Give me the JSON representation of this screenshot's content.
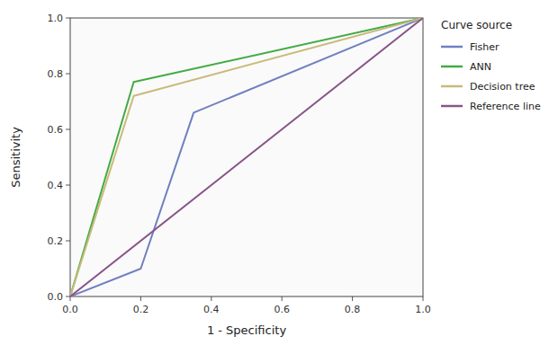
{
  "chart_data": {
    "type": "line",
    "x_label": "1 - Specificity",
    "y_label": "Sensitivity",
    "legend_title": "Curve source",
    "series": [
      {
        "name": "Fisher",
        "color": "#7080C0",
        "x": [
          0.0,
          0.2,
          0.35,
          1.0
        ],
        "values": [
          0.0,
          0.1,
          0.66,
          1.0
        ]
      },
      {
        "name": "ANN",
        "color": "#44AA44",
        "x": [
          0.0,
          0.18,
          1.0
        ],
        "values": [
          0.0,
          0.77,
          1.0
        ]
      },
      {
        "name": "Decision tree",
        "color": "#C8BA7A",
        "x": [
          0.0,
          0.18,
          1.0
        ],
        "values": [
          0.0,
          0.72,
          1.0
        ]
      },
      {
        "name": "Reference line",
        "color": "#885588",
        "x": [
          0.0,
          1.0
        ],
        "values": [
          0.0,
          1.0
        ]
      }
    ],
    "xlim": [
      0.0,
      1.0
    ],
    "ylim": [
      0.0,
      1.0
    ],
    "xticks": [
      {
        "value": 0.0,
        "label": "0.0"
      },
      0.2,
      0.4,
      0.6,
      0.8,
      {
        "value": 1.0,
        "label": "1.0"
      }
    ],
    "yticks": [
      {
        "value": 0.0,
        "label": "0.0"
      },
      0.2,
      0.4,
      0.6,
      0.8,
      {
        "value": 1.0,
        "label": "1.0"
      }
    ],
    "grid": false,
    "legend": "right"
  }
}
